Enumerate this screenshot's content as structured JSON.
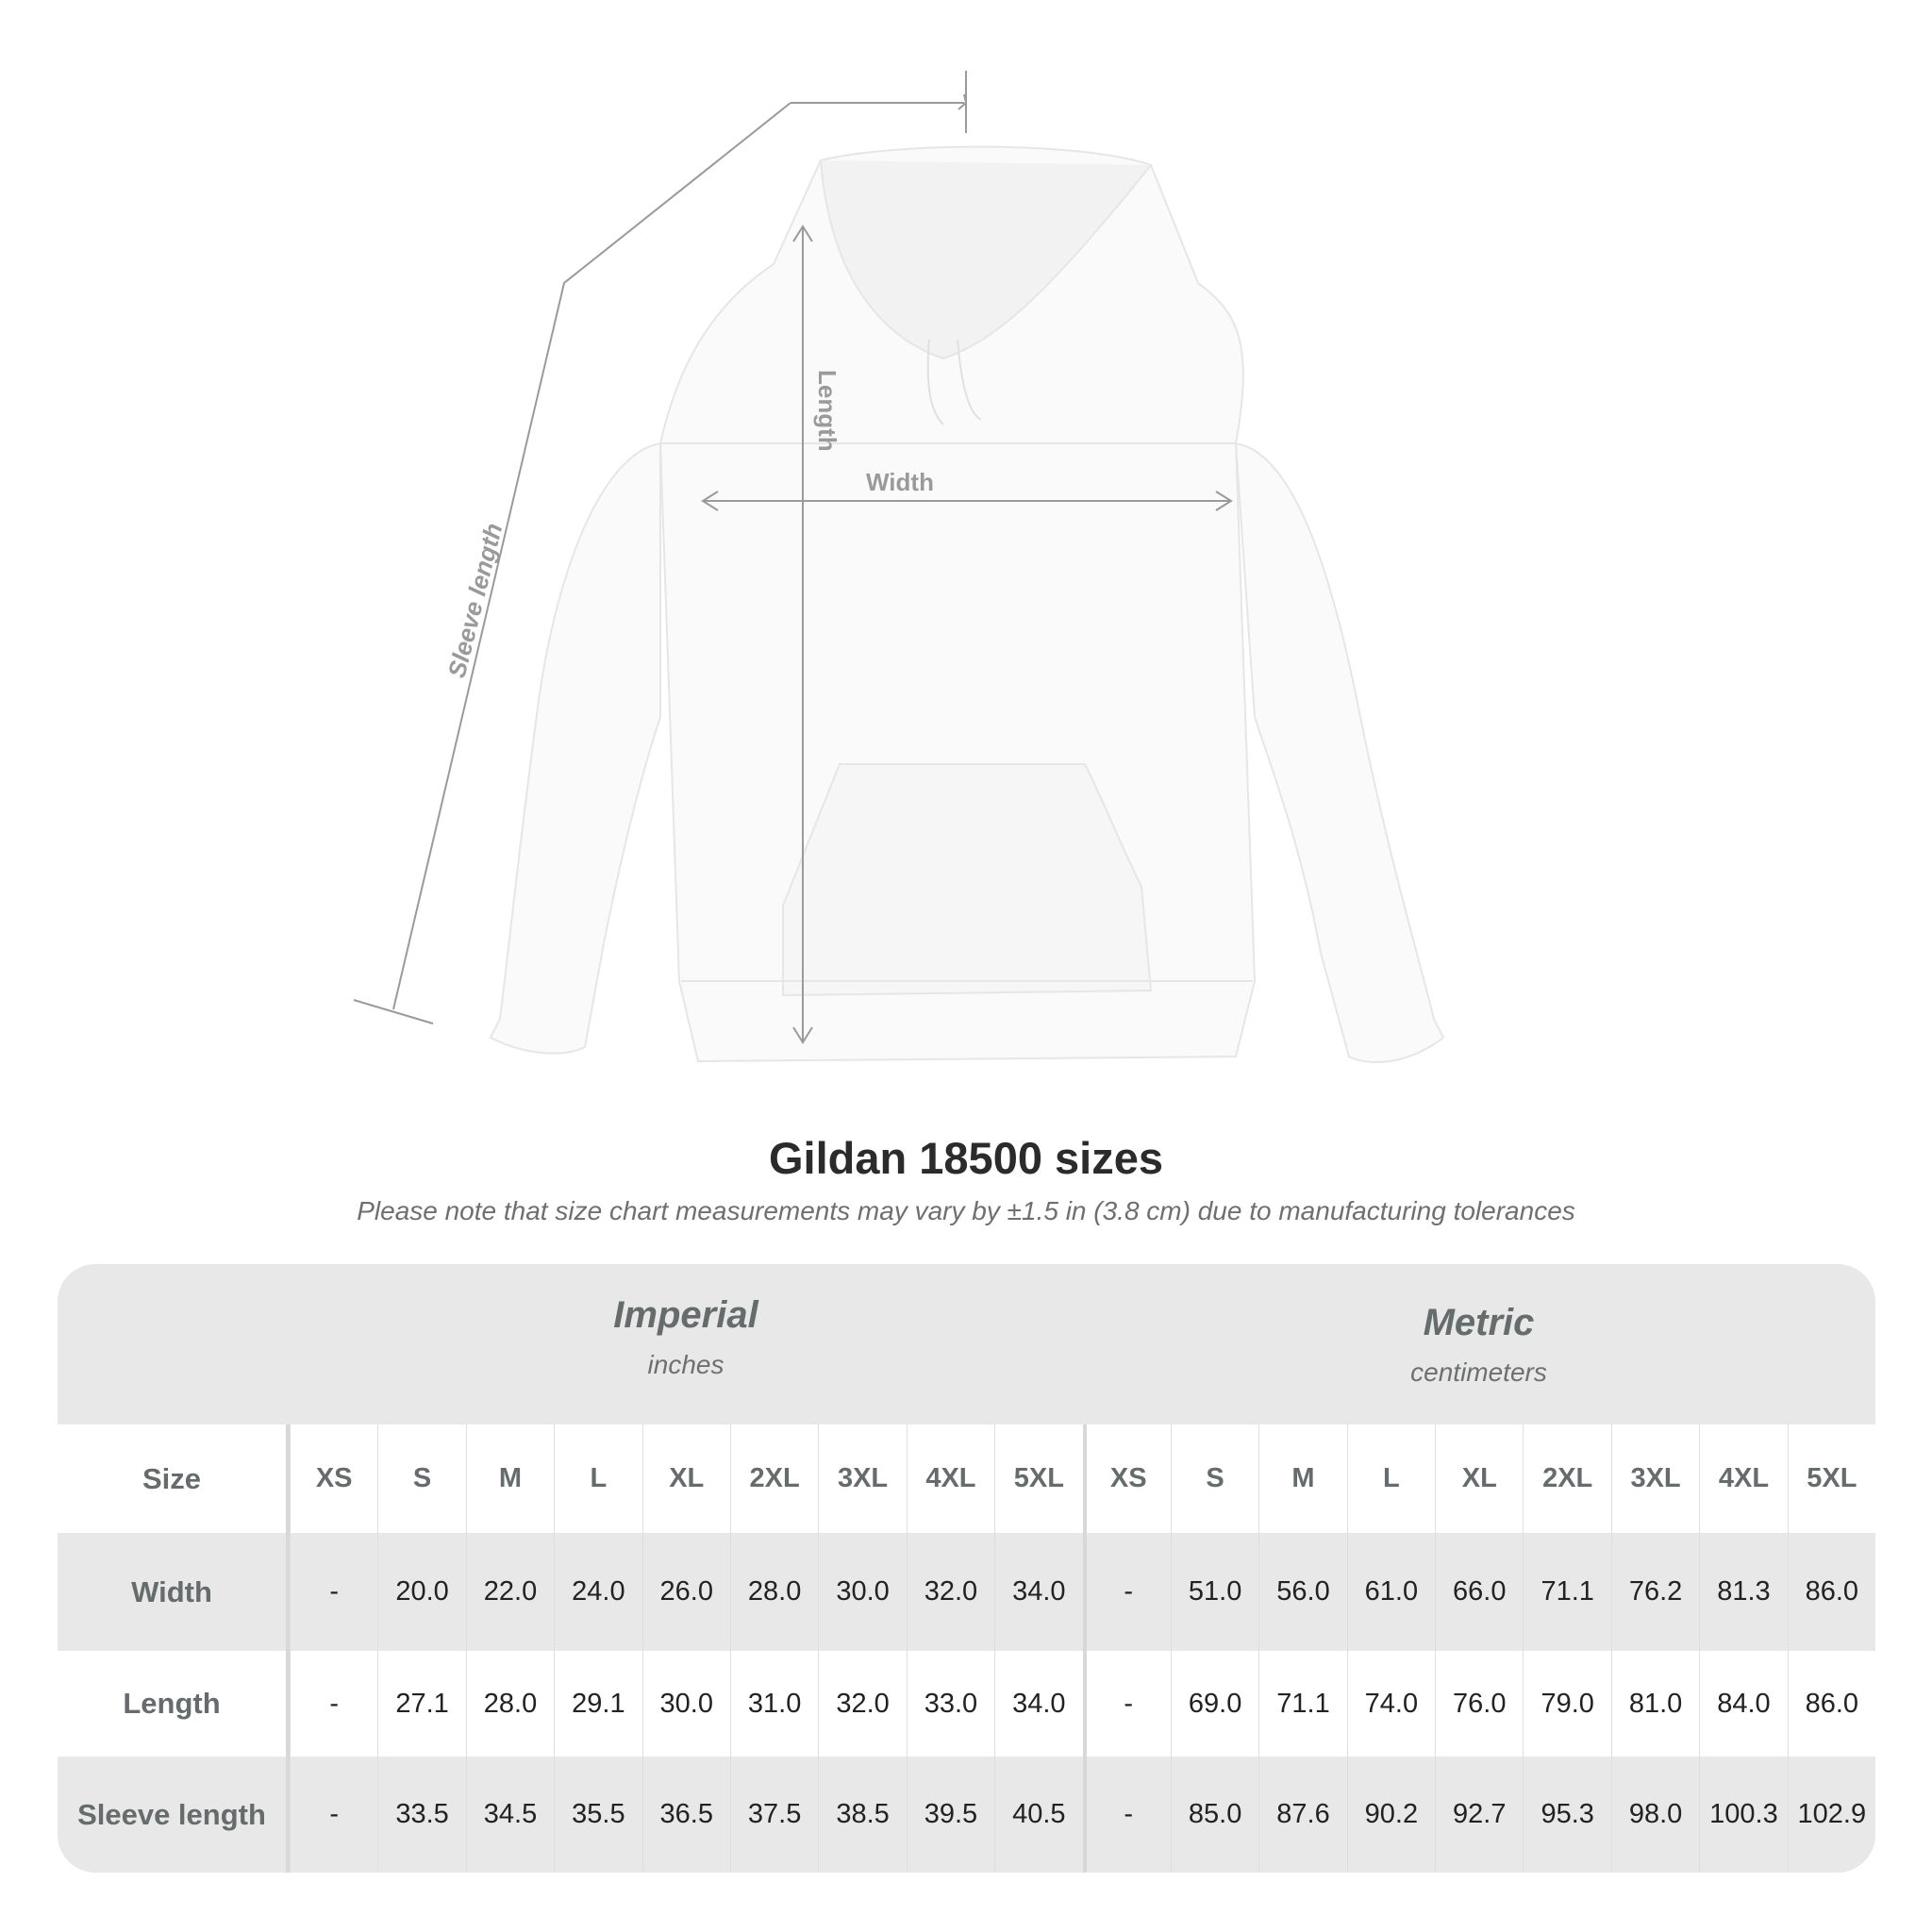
{
  "diagram": {
    "width_label": "Width",
    "length_label": "Length",
    "sleeve_label": "Sleeve length"
  },
  "title": "Gildan 18500 sizes",
  "subtitle": "Please note that size chart measurements may vary by ±1.5 in (3.8 cm) due to manufacturing tolerances",
  "table": {
    "imperial": {
      "name": "Imperial",
      "unit": "inches"
    },
    "metric": {
      "name": "Metric",
      "unit": "centimeters"
    },
    "size_label": "Size",
    "sizes": [
      "XS",
      "S",
      "M",
      "L",
      "XL",
      "2XL",
      "3XL",
      "4XL",
      "5XL"
    ],
    "rows": [
      {
        "label": "Width",
        "imperial": [
          "-",
          "20.0",
          "22.0",
          "24.0",
          "26.0",
          "28.0",
          "30.0",
          "32.0",
          "34.0"
        ],
        "metric": [
          "-",
          "51.0",
          "56.0",
          "61.0",
          "66.0",
          "71.1",
          "76.2",
          "81.3",
          "86.0"
        ]
      },
      {
        "label": "Length",
        "imperial": [
          "-",
          "27.1",
          "28.0",
          "29.1",
          "30.0",
          "31.0",
          "32.0",
          "33.0",
          "34.0"
        ],
        "metric": [
          "-",
          "69.0",
          "71.1",
          "74.0",
          "76.0",
          "79.0",
          "81.0",
          "84.0",
          "86.0"
        ]
      },
      {
        "label": "Sleeve length",
        "imperial": [
          "-",
          "33.5",
          "34.5",
          "35.5",
          "36.5",
          "37.5",
          "38.5",
          "39.5",
          "40.5"
        ],
        "metric": [
          "-",
          "85.0",
          "87.6",
          "90.2",
          "92.7",
          "95.3",
          "98.0",
          "100.3",
          "102.9"
        ]
      }
    ]
  }
}
